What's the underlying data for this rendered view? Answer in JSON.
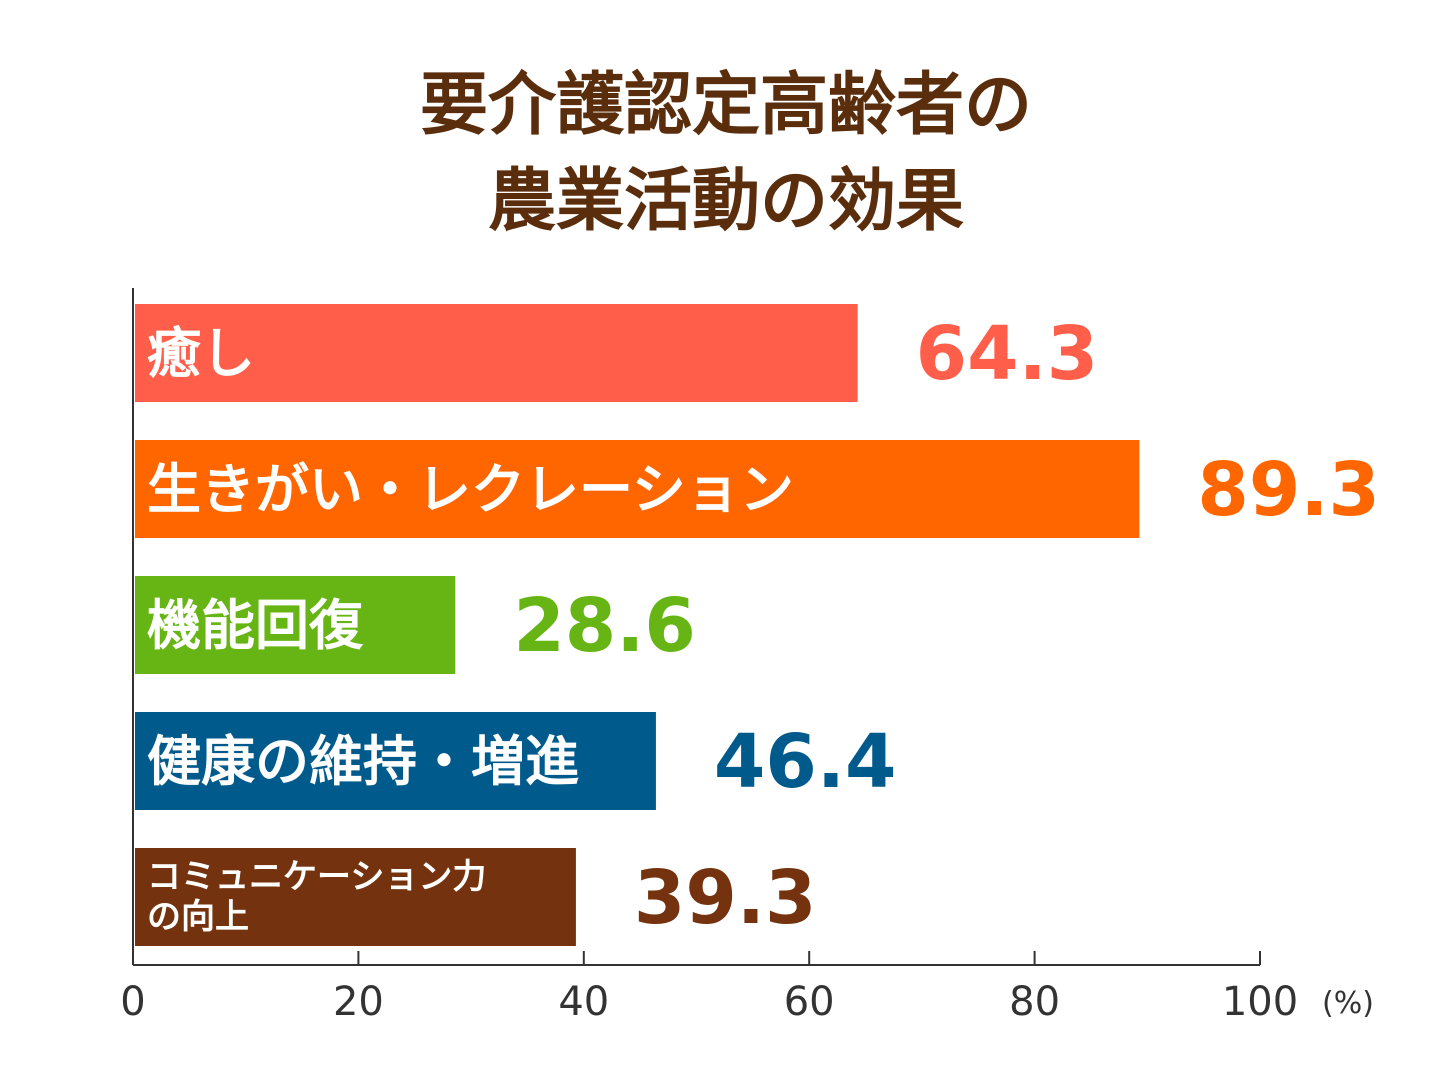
{
  "chart_data": {
    "type": "bar",
    "orientation": "horizontal",
    "title_lines": [
      "要介護認定高齢者の",
      "農業活動の効果"
    ],
    "categories": [
      [
        "癒し"
      ],
      [
        "生きがい・レクレーション"
      ],
      [
        "機能回復"
      ],
      [
        "健康の維持・増進"
      ],
      [
        "コミュニケーション力",
        "の向上"
      ]
    ],
    "values": [
      64.3,
      89.3,
      28.6,
      46.4,
      39.3
    ],
    "value_labels": [
      "64.3",
      "89.3",
      "28.6",
      "46.4",
      "39.3"
    ],
    "colors": [
      "#ff5f4a",
      "#ff6600",
      "#66b514",
      "#005a8c",
      "#74320e"
    ],
    "xlim": [
      0,
      100
    ],
    "xticks": [
      "0",
      "20",
      "40",
      "60",
      "80",
      "100"
    ],
    "xtick_values": [
      0,
      20,
      40,
      60,
      80,
      100
    ],
    "unit": "(%)",
    "grid": false,
    "legend": "none"
  },
  "colors": {
    "title": "#5a2d0c",
    "axis": "#333333",
    "bar_text": "#ffffff"
  }
}
